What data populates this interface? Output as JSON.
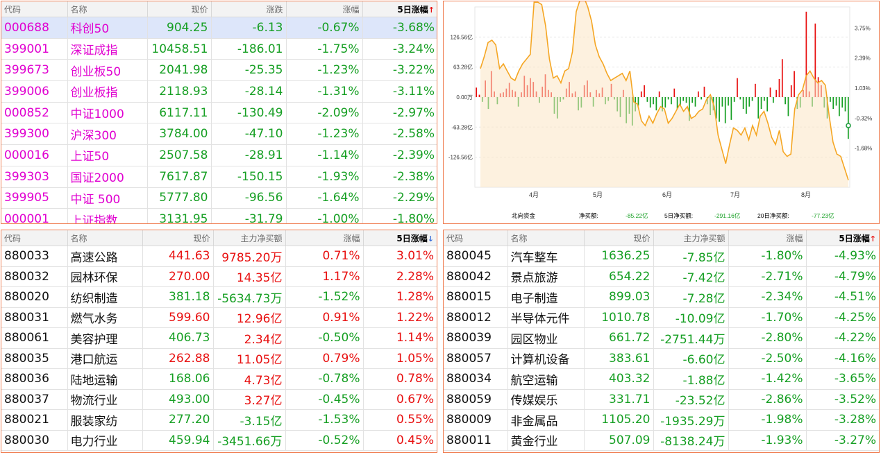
{
  "colors": {
    "up": "#e81010",
    "down": "#169f23",
    "code": "#e000d0",
    "border": "#f07e52",
    "line": "#f5a623"
  },
  "index_table": {
    "headers": {
      "code": "代码",
      "name": "名称",
      "price": "现价",
      "change": "涨跌",
      "pct": "涨幅",
      "pct5": "5日涨幅",
      "sort_icon": "↑"
    },
    "rows": [
      {
        "code": "000688",
        "name": "科创50",
        "price": "904.25",
        "change": "-6.13",
        "pct": "-0.67%",
        "pct5": "-3.68%"
      },
      {
        "code": "399001",
        "name": "深证成指",
        "price": "10458.51",
        "change": "-186.01",
        "pct": "-1.75%",
        "pct5": "-3.24%"
      },
      {
        "code": "399673",
        "name": "创业板50",
        "price": "2041.98",
        "change": "-25.35",
        "pct": "-1.23%",
        "pct5": "-3.22%"
      },
      {
        "code": "399006",
        "name": "创业板指",
        "price": "2118.93",
        "change": "-28.14",
        "pct": "-1.31%",
        "pct5": "-3.11%"
      },
      {
        "code": "000852",
        "name": "中证1000",
        "price": "6117.11",
        "change": "-130.49",
        "pct": "-2.09%",
        "pct5": "-2.97%"
      },
      {
        "code": "399300",
        "name": "沪深300",
        "price": "3784.00",
        "change": "-47.10",
        "pct": "-1.23%",
        "pct5": "-2.58%"
      },
      {
        "code": "000016",
        "name": "上证50",
        "price": "2507.58",
        "change": "-28.91",
        "pct": "-1.14%",
        "pct5": "-2.39%"
      },
      {
        "code": "399303",
        "name": "国证2000",
        "price": "7617.87",
        "change": "-150.15",
        "pct": "-1.93%",
        "pct5": "-2.38%"
      },
      {
        "code": "399905",
        "name": "中证 500",
        "price": "5777.80",
        "change": "-96.56",
        "pct": "-1.64%",
        "pct5": "-2.29%"
      },
      {
        "code": "000001",
        "name": "上证指数",
        "price": "3131.95",
        "change": "-31.79",
        "pct": "-1.00%",
        "pct5": "-1.80%"
      }
    ]
  },
  "chart_data": {
    "type": "bar",
    "title": "",
    "x_ticks": [
      "4月",
      "5月",
      "6月",
      "7月",
      "8月"
    ],
    "y_left_ticks": [
      "126.56亿",
      "63.28亿",
      "0.00万",
      "-63.28亿",
      "-126.56亿"
    ],
    "y_left_range": [
      -190,
      190
    ],
    "y_right_ticks": [
      "3.75%",
      "2.39%",
      "1.03%",
      "-0.32%",
      "-1.68%"
    ],
    "footer": {
      "name": "北向资金",
      "net_label": "净买额:",
      "net_value": "-85.22亿",
      "net5_label": "5日净买额:",
      "net5_value": "-291.16亿",
      "net20_label": "20日净买额:",
      "net20_value": "-77.23亿"
    },
    "series": [
      {
        "values": [
          20,
          5,
          -10,
          35,
          -25,
          55,
          12,
          -15,
          8,
          10,
          18,
          30,
          15,
          12,
          -20,
          10,
          45,
          25,
          40,
          32,
          12,
          -12,
          22,
          48,
          15,
          10,
          -35,
          -45,
          -10,
          -5,
          18,
          32,
          8,
          12,
          -28,
          -22,
          25,
          35,
          10,
          -20,
          15,
          8,
          20,
          -15,
          -8,
          28,
          -5,
          -30,
          -42,
          15,
          -55,
          -35,
          -60,
          -30,
          -18,
          12,
          25,
          -10,
          -22,
          -15,
          -28,
          12,
          -30,
          -22,
          -5,
          -15,
          18,
          -25,
          -18,
          -8,
          -12,
          -50,
          -12,
          -20,
          12,
          -5,
          22,
          -15,
          -38,
          -28,
          -45,
          -52,
          -20,
          -55,
          -18,
          -48,
          -10,
          40,
          -5,
          -25,
          -35,
          -20,
          -8,
          28,
          -45,
          -25,
          -8,
          -30,
          20,
          -12,
          15,
          38,
          80,
          -15,
          -40,
          25,
          55,
          -25,
          -22,
          15,
          180,
          12,
          -20,
          155,
          42,
          25,
          -22,
          -45,
          -10,
          -25,
          -18,
          -40,
          -22,
          -30,
          -88
        ]
      }
    ],
    "line_series": [
      {
        "name": "",
        "values": [
          60,
          85,
          115,
          120,
          110,
          60,
          70,
          55,
          40,
          35,
          55,
          70,
          80,
          90,
          200,
          200,
          195,
          150,
          80,
          40,
          45,
          30,
          55,
          60,
          95,
          180,
          205,
          210,
          190,
          160,
          110,
          85,
          70,
          50,
          35,
          40,
          45,
          50,
          35,
          55,
          -10,
          -15,
          -50,
          -60,
          -40,
          -55,
          -35,
          -20,
          -25,
          -55,
          -45,
          -30,
          -15,
          -30,
          -20,
          -45,
          -40,
          -30,
          -25,
          -5,
          5,
          -20,
          -80,
          -110,
          -140,
          -100,
          -65,
          -70,
          -80,
          -65,
          -90,
          -60,
          -80,
          -40,
          -30,
          -55,
          -85,
          -100,
          -70,
          -115,
          -125,
          -120,
          -25,
          5,
          15,
          45,
          55,
          40,
          30,
          35,
          25,
          -40,
          -95,
          -120,
          -125,
          -150,
          -175
        ]
      }
    ]
  },
  "sector_left": {
    "headers": {
      "code": "代码",
      "name": "名称",
      "price": "现价",
      "flow": "主力净买额",
      "pct": "涨幅",
      "pct5": "5日涨幅",
      "sort_icon": "↓"
    },
    "rows": [
      {
        "code": "880033",
        "name": "高速公路",
        "price": "441.63",
        "flow": "9785.20万",
        "pct": "0.71%",
        "pct5": "3.01%",
        "pc": "red",
        "fc": "red",
        "pcc": "red"
      },
      {
        "code": "880032",
        "name": "园林环保",
        "price": "270.00",
        "flow": "14.35亿",
        "pct": "1.17%",
        "pct5": "2.28%",
        "pc": "red",
        "fc": "red",
        "pcc": "red"
      },
      {
        "code": "880020",
        "name": "纺织制造",
        "price": "381.18",
        "flow": "-5634.73万",
        "pct": "-1.52%",
        "pct5": "1.28%",
        "pc": "grn",
        "fc": "grn",
        "pcc": "grn"
      },
      {
        "code": "880031",
        "name": "燃气水务",
        "price": "599.60",
        "flow": "12.96亿",
        "pct": "0.91%",
        "pct5": "1.22%",
        "pc": "red",
        "fc": "red",
        "pcc": "red"
      },
      {
        "code": "880061",
        "name": "美容护理",
        "price": "406.73",
        "flow": "2.34亿",
        "pct": "-0.50%",
        "pct5": "1.14%",
        "pc": "grn",
        "fc": "red",
        "pcc": "grn"
      },
      {
        "code": "880035",
        "name": "港口航运",
        "price": "262.88",
        "flow": "11.05亿",
        "pct": "0.79%",
        "pct5": "1.05%",
        "pc": "red",
        "fc": "red",
        "pcc": "red"
      },
      {
        "code": "880036",
        "name": "陆地运输",
        "price": "168.06",
        "flow": "4.73亿",
        "pct": "-0.78%",
        "pct5": "0.78%",
        "pc": "grn",
        "fc": "red",
        "pcc": "grn"
      },
      {
        "code": "880037",
        "name": "物流行业",
        "price": "493.00",
        "flow": "3.27亿",
        "pct": "-0.45%",
        "pct5": "0.67%",
        "pc": "grn",
        "fc": "red",
        "pcc": "grn"
      },
      {
        "code": "880021",
        "name": "服装家纺",
        "price": "277.20",
        "flow": "-3.15亿",
        "pct": "-1.53%",
        "pct5": "0.55%",
        "pc": "grn",
        "fc": "grn",
        "pcc": "grn"
      },
      {
        "code": "880030",
        "name": "电力行业",
        "price": "459.94",
        "flow": "-3451.66万",
        "pct": "-0.52%",
        "pct5": "0.45%",
        "pc": "grn",
        "fc": "grn",
        "pcc": "grn"
      }
    ]
  },
  "sector_right": {
    "headers": {
      "code": "代码",
      "name": "名称",
      "price": "现价",
      "flow": "主力净买额",
      "pct": "涨幅",
      "pct5": "5日涨幅",
      "sort_icon": "↑"
    },
    "rows": [
      {
        "code": "880045",
        "name": "汽车整车",
        "price": "1636.25",
        "flow": "-7.85亿",
        "pct": "-1.80%",
        "pct5": "-4.93%"
      },
      {
        "code": "880042",
        "name": "景点旅游",
        "price": "654.22",
        "flow": "-7.42亿",
        "pct": "-2.71%",
        "pct5": "-4.79%"
      },
      {
        "code": "880015",
        "name": "电子制造",
        "price": "899.03",
        "flow": "-7.28亿",
        "pct": "-2.34%",
        "pct5": "-4.51%"
      },
      {
        "code": "880012",
        "name": "半导体元件",
        "price": "1010.78",
        "flow": "-10.09亿",
        "pct": "-1.70%",
        "pct5": "-4.25%"
      },
      {
        "code": "880039",
        "name": "园区物业",
        "price": "661.72",
        "flow": "-2751.44万",
        "pct": "-2.80%",
        "pct5": "-4.22%"
      },
      {
        "code": "880057",
        "name": "计算机设备",
        "price": "383.61",
        "flow": "-6.60亿",
        "pct": "-2.50%",
        "pct5": "-4.16%"
      },
      {
        "code": "880034",
        "name": "航空运输",
        "price": "403.32",
        "flow": "-1.88亿",
        "pct": "-1.42%",
        "pct5": "-3.65%"
      },
      {
        "code": "880059",
        "name": "传媒娱乐",
        "price": "331.71",
        "flow": "-23.52亿",
        "pct": "-2.86%",
        "pct5": "-3.52%"
      },
      {
        "code": "880009",
        "name": "非金属品",
        "price": "1105.20",
        "flow": "-1935.29万",
        "pct": "-1.98%",
        "pct5": "-3.28%"
      },
      {
        "code": "880011",
        "name": "黄金行业",
        "price": "507.09",
        "flow": "-8138.24万",
        "pct": "-1.93%",
        "pct5": "-3.27%"
      }
    ]
  }
}
